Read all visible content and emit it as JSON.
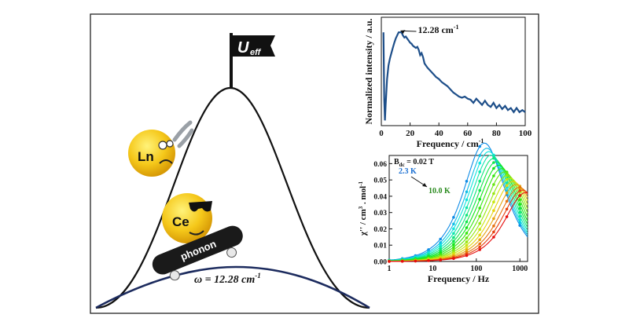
{
  "diagram": {
    "flag_label_main": "U",
    "flag_label_sub": "eff",
    "ln_label": "Ln",
    "ce_label": "Ce",
    "skateboard_label": "phonon",
    "omega_label": "ω = 12.28 cm",
    "omega_sup": "-1"
  },
  "chart_data": [
    {
      "type": "line",
      "xlabel": "Frequency / cm",
      "xlabel_sup": "-1",
      "ylabel": "Normalized intensity / a.u.",
      "xlim": [
        0,
        100
      ],
      "xticks": [
        "0",
        "20",
        "40",
        "60",
        "80",
        "100"
      ],
      "annotation": "12.28 cm",
      "annotation_sup": "-1",
      "annotation_x": 12.28,
      "x": [
        1.5,
        2,
        2.5,
        3,
        4,
        5,
        6,
        7,
        8,
        9,
        10,
        11,
        12,
        13,
        14,
        15,
        16,
        17,
        18,
        19,
        20,
        21,
        22,
        23,
        24,
        25,
        26,
        27,
        28,
        29,
        30,
        32,
        34,
        36,
        38,
        40,
        42,
        44,
        46,
        48,
        50,
        52,
        54,
        56,
        58,
        60,
        62,
        64,
        66,
        68,
        70,
        72,
        74,
        76,
        78,
        80,
        82,
        84,
        86,
        88,
        90,
        92,
        94,
        96,
        98,
        100
      ],
      "y": [
        0.9,
        0.25,
        0.05,
        0.2,
        0.45,
        0.58,
        0.65,
        0.7,
        0.75,
        0.8,
        0.84,
        0.87,
        0.9,
        0.9,
        0.9,
        0.87,
        0.85,
        0.86,
        0.84,
        0.82,
        0.8,
        0.79,
        0.77,
        0.76,
        0.75,
        0.76,
        0.73,
        0.68,
        0.7,
        0.66,
        0.6,
        0.56,
        0.53,
        0.5,
        0.47,
        0.45,
        0.42,
        0.4,
        0.38,
        0.35,
        0.32,
        0.3,
        0.28,
        0.27,
        0.28,
        0.26,
        0.25,
        0.22,
        0.26,
        0.23,
        0.2,
        0.24,
        0.2,
        0.18,
        0.22,
        0.17,
        0.2,
        0.16,
        0.19,
        0.15,
        0.17,
        0.13,
        0.17,
        0.13,
        0.15,
        0.13
      ]
    },
    {
      "type": "scatter",
      "xlabel": "Frequency / Hz",
      "ylabel": "χ'' / cm",
      "ylabel_sup": "3",
      "ylabel_tail": " . mol",
      "ylabel_tail_sup": "-1",
      "xscale": "log",
      "xlim": [
        1,
        1500
      ],
      "ylim": [
        0,
        0.065
      ],
      "xticks": [
        "1",
        "10",
        "100",
        "1000"
      ],
      "yticks": [
        "0.00",
        "0.01",
        "0.02",
        "0.03",
        "0.04",
        "0.05",
        "0.06"
      ],
      "field_label": "B",
      "field_sub": "dc",
      "field_value": " = 0.02 T",
      "temp_low": "2.3 K",
      "temp_high": "10.0 K",
      "temp_low_color": "#1a6fd1",
      "temp_high_color": "#2a8a1e",
      "series_peaks": [
        {
          "peak": 0.0655,
          "f": 150
        },
        {
          "peak": 0.0625,
          "f": 170
        },
        {
          "peak": 0.0605,
          "f": 190
        },
        {
          "peak": 0.0585,
          "f": 215
        },
        {
          "peak": 0.0565,
          "f": 245
        },
        {
          "peak": 0.0545,
          "f": 280
        },
        {
          "peak": 0.0525,
          "f": 320
        },
        {
          "peak": 0.0505,
          "f": 370
        },
        {
          "peak": 0.0485,
          "f": 430
        },
        {
          "peak": 0.0465,
          "f": 500
        },
        {
          "peak": 0.0448,
          "f": 580
        },
        {
          "peak": 0.043,
          "f": 680
        },
        {
          "peak": 0.0412,
          "f": 800
        },
        {
          "peak": 0.0395,
          "f": 950
        },
        {
          "peak": 0.038,
          "f": 1120
        },
        {
          "peak": 0.0365,
          "f": 1320
        }
      ],
      "sample_freqs": [
        1,
        2,
        4,
        8,
        15,
        30,
        60,
        120,
        250,
        500,
        1000
      ]
    }
  ]
}
